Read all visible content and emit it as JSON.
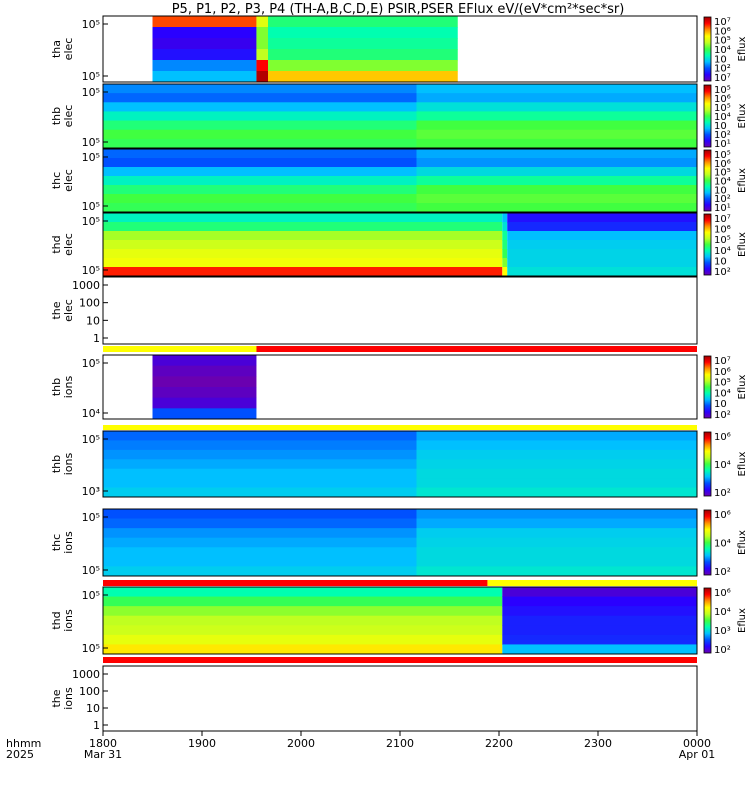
{
  "title": "P5, P1, P2, P3, P4 (TH-A,B,C,D,E) PSIR,PSER EFlux eV/(eV*cm²*sec*sr)",
  "x_axis": {
    "row_label_1": "hhmm",
    "row_label_2": "2025",
    "ticks": [
      {
        "hhmm": 1800,
        "text": "1800",
        "date": "Mar 31"
      },
      {
        "hhmm": 1900,
        "text": "1900",
        "date": ""
      },
      {
        "hhmm": 2000,
        "text": "2000",
        "date": ""
      },
      {
        "hhmm": 2100,
        "text": "2100",
        "date": ""
      },
      {
        "hhmm": 2200,
        "text": "2200",
        "date": ""
      },
      {
        "hhmm": 2300,
        "text": "2300",
        "date": ""
      },
      {
        "hhmm": 2400,
        "text": "0000",
        "date": "Apr 01"
      }
    ]
  },
  "colorbar_unit": "Eflux",
  "colors": {
    "background": "#ffffff",
    "status_red": "#ff0000",
    "status_yellow": "#ffff00",
    "colormap": [
      "#6a00b0",
      "#2a00ff",
      "#0050ff",
      "#00c0ff",
      "#00ffb0",
      "#40ff40",
      "#c0ff20",
      "#ffff00",
      "#ff9000",
      "#ff0000",
      "#a00000"
    ]
  },
  "chart_data": {
    "type": "heatmap",
    "time_range": [
      "2025-03-31 18:00",
      "2025-04-01 00:00"
    ],
    "panels": [
      {
        "id": "tha-elec",
        "label1": "tha",
        "label2": "elec",
        "kind": "spectrogram",
        "y_ticks": [
          "10⁵",
          "10⁵"
        ],
        "cbar_ticks": [
          "10⁷",
          "10⁶",
          "10⁵",
          "10⁴",
          "10⁳",
          "10²",
          "10⁷"
        ],
        "segments": [
          {
            "start": "18:30",
            "end": "19:33",
            "levels": [
              0.85,
              0.1,
              0.08,
              0.12,
              0.25,
              0.3
            ]
          },
          {
            "start": "19:33",
            "end": "19:40",
            "levels": [
              0.65,
              0.55,
              0.55,
              0.6,
              0.9,
              0.98
            ]
          },
          {
            "start": "19:40",
            "end": "20:10",
            "levels": [
              0.45,
              0.4,
              0.42,
              0.45,
              0.55,
              0.75
            ]
          },
          {
            "start": "20:10",
            "end": "21:35",
            "levels": [
              0.45,
              0.4,
              0.42,
              0.45,
              0.55,
              0.75
            ]
          }
        ]
      },
      {
        "id": "thb-elec",
        "label1": "thb",
        "label2": "elec",
        "kind": "spectrogram",
        "y_ticks": [
          "10⁵",
          "10⁵"
        ],
        "cbar_ticks": [
          "10⁵",
          "10⁶",
          "10⁵",
          "10⁴",
          "10⁳",
          "10²",
          "10¹"
        ],
        "segments": [
          {
            "start": "18:00",
            "end": "21:10",
            "levels": [
              0.25,
              0.22,
              0.3,
              0.38,
              0.45,
              0.5,
              0.48
            ]
          },
          {
            "start": "21:10",
            "end": "24:00",
            "levels": [
              0.3,
              0.28,
              0.35,
              0.42,
              0.5,
              0.52,
              0.5
            ]
          }
        ]
      },
      {
        "id": "thc-elec",
        "label1": "thc",
        "label2": "elec",
        "kind": "spectrogram",
        "y_ticks": [
          "10⁵",
          "10⁵"
        ],
        "cbar_ticks": [
          "10⁵",
          "10⁶",
          "10⁵",
          "10⁴",
          "10⁳",
          "10²",
          "10¹"
        ],
        "segments": [
          {
            "start": "18:00",
            "end": "21:10",
            "levels": [
              0.22,
              0.2,
              0.3,
              0.38,
              0.45,
              0.5,
              0.48
            ]
          },
          {
            "start": "21:10",
            "end": "24:00",
            "levels": [
              0.28,
              0.26,
              0.34,
              0.42,
              0.5,
              0.52,
              0.5
            ]
          }
        ]
      },
      {
        "id": "thd-elec",
        "label1": "thd",
        "label2": "elec",
        "kind": "spectrogram",
        "y_ticks": [
          "10⁵",
          "10⁵"
        ],
        "cbar_ticks": [
          "10⁷",
          "10⁶",
          "10⁵",
          "10⁴",
          "10⁳",
          "10²"
        ],
        "segments": [
          {
            "start": "18:00",
            "end": "22:02",
            "levels": [
              0.38,
              0.45,
              0.58,
              0.62,
              0.66,
              0.68,
              0.88
            ]
          },
          {
            "start": "22:02",
            "end": "22:05",
            "levels": [
              0.3,
              0.35,
              0.42,
              0.45,
              0.48,
              0.55,
              0.7
            ]
          },
          {
            "start": "22:05",
            "end": "24:00",
            "levels": [
              0.12,
              0.15,
              0.3,
              0.32,
              0.33,
              0.33,
              0.35
            ]
          }
        ]
      },
      {
        "id": "the-elec",
        "label1": "the",
        "label2": "elec",
        "kind": "empty",
        "y_ticks": [
          "1000",
          "100",
          "10",
          "1"
        ]
      },
      {
        "id": "status-a",
        "kind": "status",
        "segments": [
          {
            "start": "18:00",
            "end": "19:33",
            "color": "yellow"
          },
          {
            "start": "19:33",
            "end": "24:00",
            "color": "red"
          }
        ]
      },
      {
        "id": "thb-ions",
        "label1": "thb",
        "label2": "ions",
        "kind": "spectrogram",
        "y_ticks": [
          "10⁵",
          "10⁴"
        ],
        "cbar_ticks": [
          "10⁷",
          "10⁶",
          "10⁵",
          "10⁴",
          "10⁳",
          "10²"
        ],
        "segments": [
          {
            "start": "18:30",
            "end": "19:33",
            "levels": [
              0.05,
              0.02,
              0.0,
              0.02,
              0.05,
              0.2
            ]
          }
        ]
      },
      {
        "id": "status-b",
        "kind": "status",
        "segments": [
          {
            "start": "18:00",
            "end": "24:00",
            "color": "yellow"
          }
        ]
      },
      {
        "id": "thb-ions-2",
        "label1": "thb",
        "label2": "ions",
        "kind": "spectrogram",
        "y_ticks": [
          "10⁵",
          "10³"
        ],
        "cbar_ticks": [
          "10⁶",
          "10⁴",
          "10²"
        ],
        "segments": [
          {
            "start": "18:00",
            "end": "21:10",
            "levels": [
              0.22,
              0.24,
              0.26,
              0.28,
              0.3,
              0.3,
              0.32
            ]
          },
          {
            "start": "21:10",
            "end": "24:00",
            "levels": [
              0.28,
              0.3,
              0.32,
              0.33,
              0.34,
              0.34,
              0.36
            ]
          }
        ]
      },
      {
        "id": "thc-ions",
        "label1": "thc",
        "label2": "ions",
        "kind": "spectrogram",
        "y_ticks": [
          "10⁵",
          "10⁵"
        ],
        "cbar_ticks": [
          "10⁶",
          "10⁴",
          "10²"
        ],
        "segments": [
          {
            "start": "18:00",
            "end": "21:10",
            "levels": [
              0.2,
              0.22,
              0.26,
              0.28,
              0.3,
              0.3,
              0.32
            ]
          },
          {
            "start": "21:10",
            "end": "24:00",
            "levels": [
              0.26,
              0.28,
              0.32,
              0.33,
              0.34,
              0.34,
              0.36
            ]
          }
        ]
      },
      {
        "id": "status-c",
        "kind": "status",
        "segments": [
          {
            "start": "18:00",
            "end": "21:53",
            "color": "red"
          },
          {
            "start": "21:53",
            "end": "24:00",
            "color": "yellow"
          }
        ]
      },
      {
        "id": "thd-ions",
        "label1": "thd",
        "label2": "ions",
        "kind": "spectrogram",
        "y_ticks": [
          "10⁵",
          "10⁵"
        ],
        "cbar_ticks": [
          "10⁶",
          "10⁴",
          "10³",
          "10²"
        ],
        "segments": [
          {
            "start": "18:00",
            "end": "22:02",
            "levels": [
              0.4,
              0.48,
              0.56,
              0.6,
              0.62,
              0.66,
              0.72
            ]
          },
          {
            "start": "22:02",
            "end": "24:00",
            "levels": [
              0.05,
              0.1,
              0.12,
              0.14,
              0.14,
              0.15,
              0.3
            ]
          }
        ]
      },
      {
        "id": "status-d",
        "kind": "status",
        "segments": [
          {
            "start": "18:00",
            "end": "24:00",
            "color": "red"
          }
        ]
      },
      {
        "id": "the-ions",
        "label1": "the",
        "label2": "ions",
        "kind": "empty",
        "y_ticks": [
          "1000",
          "100",
          "10",
          "1"
        ]
      }
    ]
  }
}
